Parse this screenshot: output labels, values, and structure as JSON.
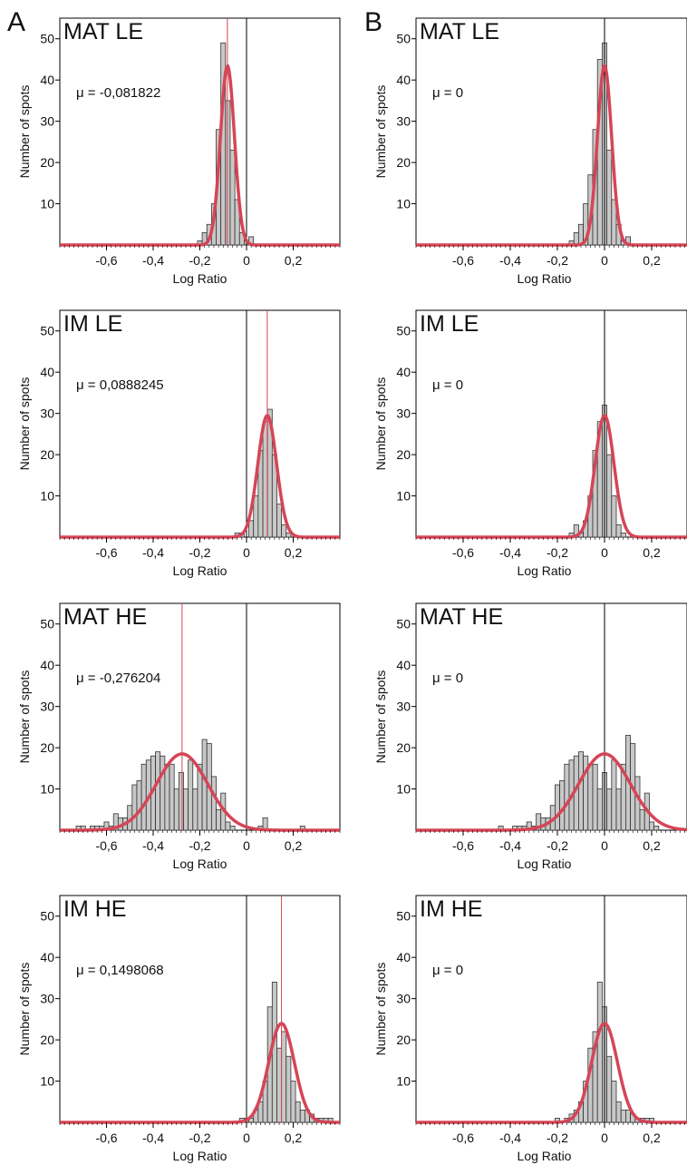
{
  "panel_labels": [
    "A",
    "B"
  ],
  "chart_data": [
    {
      "type": "bar",
      "panel": "A",
      "title": "MAT LE",
      "annotation": "μ = -0,081822",
      "mean": -0.081822,
      "xlabel": "Log Ratio",
      "ylabel": "Number of spots",
      "xlim": [
        -0.8,
        0.4
      ],
      "ylim": [
        0,
        55
      ],
      "xticks": [
        -0.6,
        -0.4,
        -0.2,
        0,
        0.2
      ],
      "xtick_labels": [
        "-0,6",
        "-0,4",
        "-0,2",
        "0",
        "0,2"
      ],
      "yticks": [
        10,
        20,
        30,
        40,
        50
      ],
      "ytick_labels": [
        "10",
        "20",
        "30",
        "40",
        "50"
      ],
      "grid": false,
      "bin_width": 0.02,
      "bins": [
        {
          "x": -0.2,
          "y": 1
        },
        {
          "x": -0.18,
          "y": 3
        },
        {
          "x": -0.16,
          "y": 5
        },
        {
          "x": -0.14,
          "y": 10
        },
        {
          "x": -0.12,
          "y": 28
        },
        {
          "x": -0.1,
          "y": 49
        },
        {
          "x": -0.08,
          "y": 35
        },
        {
          "x": -0.06,
          "y": 23
        },
        {
          "x": -0.04,
          "y": 11
        },
        {
          "x": -0.02,
          "y": 3
        },
        {
          "x": 0,
          "y": 1
        },
        {
          "x": 0.02,
          "y": 2
        }
      ],
      "fit": {
        "type": "normal",
        "mean": -0.081822,
        "sd": 0.03,
        "peak": 43.5
      }
    },
    {
      "type": "bar",
      "panel": "B",
      "title": "MAT LE",
      "annotation": "μ = 0",
      "mean": 0,
      "xlabel": "Log Ratio",
      "ylabel": "Number of spots",
      "xlim": [
        -0.8,
        0.35
      ],
      "ylim": [
        0,
        55
      ],
      "xticks": [
        -0.6,
        -0.4,
        -0.2,
        0,
        0.2
      ],
      "xtick_labels": [
        "-0,6",
        "-0,4",
        "-0,2",
        "0",
        "0,2"
      ],
      "yticks": [
        10,
        20,
        30,
        40,
        50
      ],
      "ytick_labels": [
        "10",
        "20",
        "30",
        "40",
        "50"
      ],
      "grid": false,
      "bin_width": 0.02,
      "bins": [
        {
          "x": -0.14,
          "y": 1
        },
        {
          "x": -0.12,
          "y": 3
        },
        {
          "x": -0.1,
          "y": 5
        },
        {
          "x": -0.08,
          "y": 10
        },
        {
          "x": -0.06,
          "y": 17
        },
        {
          "x": -0.04,
          "y": 28
        },
        {
          "x": -0.02,
          "y": 45
        },
        {
          "x": 0,
          "y": 49
        },
        {
          "x": 0.02,
          "y": 23
        },
        {
          "x": 0.04,
          "y": 11
        },
        {
          "x": 0.06,
          "y": 5
        },
        {
          "x": 0.08,
          "y": 1
        },
        {
          "x": 0.1,
          "y": 2
        }
      ],
      "fit": {
        "type": "normal",
        "mean": 0,
        "sd": 0.03,
        "peak": 43.5
      }
    },
    {
      "type": "bar",
      "panel": "A",
      "title": "IM LE",
      "annotation": "μ = 0,0888245",
      "mean": 0.0888245,
      "xlabel": "Log Ratio",
      "ylabel": "Number of spots",
      "xlim": [
        -0.8,
        0.4
      ],
      "ylim": [
        0,
        55
      ],
      "xticks": [
        -0.6,
        -0.4,
        -0.2,
        0,
        0.2
      ],
      "xtick_labels": [
        "-0,6",
        "-0,4",
        "-0,2",
        "0",
        "0,2"
      ],
      "yticks": [
        10,
        20,
        30,
        40,
        50
      ],
      "ytick_labels": [
        "10",
        "20",
        "30",
        "40",
        "50"
      ],
      "grid": false,
      "bin_width": 0.02,
      "bins": [
        {
          "x": -0.04,
          "y": 1
        },
        {
          "x": -0.02,
          "y": 1
        },
        {
          "x": 0.02,
          "y": 4
        },
        {
          "x": 0.04,
          "y": 10
        },
        {
          "x": 0.06,
          "y": 21
        },
        {
          "x": 0.08,
          "y": 28
        },
        {
          "x": 0.1,
          "y": 31
        },
        {
          "x": 0.12,
          "y": 20
        },
        {
          "x": 0.14,
          "y": 8
        },
        {
          "x": 0.16,
          "y": 3
        },
        {
          "x": 0.18,
          "y": 1
        }
      ],
      "fit": {
        "type": "normal",
        "mean": 0.0888245,
        "sd": 0.04,
        "peak": 29.5
      }
    },
    {
      "type": "bar",
      "panel": "B",
      "title": "IM LE",
      "annotation": "μ = 0",
      "mean": 0,
      "xlabel": "Log Ratio",
      "ylabel": "Number of spots",
      "xlim": [
        -0.8,
        0.35
      ],
      "ylim": [
        0,
        55
      ],
      "xticks": [
        -0.6,
        -0.4,
        -0.2,
        0,
        0.2
      ],
      "xtick_labels": [
        "-0,6",
        "-0,4",
        "-0,2",
        "0",
        "0,2"
      ],
      "yticks": [
        10,
        20,
        30,
        40,
        50
      ],
      "ytick_labels": [
        "10",
        "20",
        "30",
        "40",
        "50"
      ],
      "grid": false,
      "bin_width": 0.02,
      "bins": [
        {
          "x": -0.14,
          "y": 1
        },
        {
          "x": -0.12,
          "y": 3
        },
        {
          "x": -0.1,
          "y": 1
        },
        {
          "x": -0.08,
          "y": 4
        },
        {
          "x": -0.06,
          "y": 10
        },
        {
          "x": -0.04,
          "y": 21
        },
        {
          "x": -0.02,
          "y": 28
        },
        {
          "x": 0,
          "y": 32
        },
        {
          "x": 0.02,
          "y": 20
        },
        {
          "x": 0.04,
          "y": 10
        },
        {
          "x": 0.06,
          "y": 3
        },
        {
          "x": 0.08,
          "y": 1
        }
      ],
      "fit": {
        "type": "normal",
        "mean": 0,
        "sd": 0.04,
        "peak": 29.5
      }
    },
    {
      "type": "bar",
      "panel": "A",
      "title": "MAT HE",
      "annotation": "μ = -0,276204",
      "mean": -0.276204,
      "xlabel": "Log Ratio",
      "ylabel": "Number of spots",
      "xlim": [
        -0.8,
        0.4
      ],
      "ylim": [
        0,
        55
      ],
      "xticks": [
        -0.6,
        -0.4,
        -0.2,
        0,
        0.2
      ],
      "xtick_labels": [
        "-0,6",
        "-0,4",
        "-0,2",
        "0",
        "0,2"
      ],
      "yticks": [
        10,
        20,
        30,
        40,
        50
      ],
      "ytick_labels": [
        "10",
        "20",
        "30",
        "40",
        "50"
      ],
      "grid": false,
      "bin_width": 0.02,
      "bins": [
        {
          "x": -0.72,
          "y": 1
        },
        {
          "x": -0.7,
          "y": 1
        },
        {
          "x": -0.66,
          "y": 1
        },
        {
          "x": -0.64,
          "y": 1
        },
        {
          "x": -0.62,
          "y": 1
        },
        {
          "x": -0.6,
          "y": 2
        },
        {
          "x": -0.58,
          "y": 1
        },
        {
          "x": -0.56,
          "y": 4
        },
        {
          "x": -0.54,
          "y": 3
        },
        {
          "x": -0.52,
          "y": 3
        },
        {
          "x": -0.5,
          "y": 6
        },
        {
          "x": -0.48,
          "y": 11
        },
        {
          "x": -0.46,
          "y": 12
        },
        {
          "x": -0.44,
          "y": 16
        },
        {
          "x": -0.42,
          "y": 17
        },
        {
          "x": -0.4,
          "y": 18
        },
        {
          "x": -0.38,
          "y": 19
        },
        {
          "x": -0.36,
          "y": 18
        },
        {
          "x": -0.34,
          "y": 16
        },
        {
          "x": -0.32,
          "y": 16
        },
        {
          "x": -0.3,
          "y": 10
        },
        {
          "x": -0.28,
          "y": 14
        },
        {
          "x": -0.26,
          "y": 10
        },
        {
          "x": -0.24,
          "y": 17
        },
        {
          "x": -0.22,
          "y": 10
        },
        {
          "x": -0.2,
          "y": 16
        },
        {
          "x": -0.18,
          "y": 22
        },
        {
          "x": -0.16,
          "y": 21
        },
        {
          "x": -0.14,
          "y": 13
        },
        {
          "x": -0.12,
          "y": 5
        },
        {
          "x": -0.1,
          "y": 9
        },
        {
          "x": -0.08,
          "y": 2
        },
        {
          "x": -0.06,
          "y": 1
        },
        {
          "x": 0.06,
          "y": 1
        },
        {
          "x": 0.08,
          "y": 3
        },
        {
          "x": 0.24,
          "y": 1
        }
      ],
      "fit": {
        "type": "normal",
        "mean": -0.276204,
        "sd": 0.11,
        "peak": 18.5
      }
    },
    {
      "type": "bar",
      "panel": "B",
      "title": "MAT HE",
      "annotation": "μ = 0",
      "mean": 0,
      "xlabel": "Log Ratio",
      "ylabel": "Number of spots",
      "xlim": [
        -0.8,
        0.35
      ],
      "ylim": [
        0,
        55
      ],
      "xticks": [
        -0.6,
        -0.4,
        -0.2,
        0,
        0.2
      ],
      "xtick_labels": [
        "-0,6",
        "-0,4",
        "-0,2",
        "0",
        "0,2"
      ],
      "yticks": [
        10,
        20,
        30,
        40,
        50
      ],
      "ytick_labels": [
        "10",
        "20",
        "30",
        "40",
        "50"
      ],
      "grid": false,
      "bin_width": 0.02,
      "bins": [
        {
          "x": -0.44,
          "y": 1
        },
        {
          "x": -0.38,
          "y": 1
        },
        {
          "x": -0.36,
          "y": 1
        },
        {
          "x": -0.34,
          "y": 1
        },
        {
          "x": -0.32,
          "y": 2
        },
        {
          "x": -0.3,
          "y": 1
        },
        {
          "x": -0.28,
          "y": 4
        },
        {
          "x": -0.26,
          "y": 3
        },
        {
          "x": -0.24,
          "y": 3
        },
        {
          "x": -0.22,
          "y": 6
        },
        {
          "x": -0.2,
          "y": 11
        },
        {
          "x": -0.18,
          "y": 12
        },
        {
          "x": -0.16,
          "y": 16
        },
        {
          "x": -0.14,
          "y": 17
        },
        {
          "x": -0.12,
          "y": 18
        },
        {
          "x": -0.1,
          "y": 19
        },
        {
          "x": -0.08,
          "y": 18
        },
        {
          "x": -0.06,
          "y": 16
        },
        {
          "x": -0.04,
          "y": 16
        },
        {
          "x": -0.02,
          "y": 10
        },
        {
          "x": 0,
          "y": 14
        },
        {
          "x": 0.02,
          "y": 10
        },
        {
          "x": 0.04,
          "y": 17
        },
        {
          "x": 0.06,
          "y": 10
        },
        {
          "x": 0.08,
          "y": 16
        },
        {
          "x": 0.1,
          "y": 23
        },
        {
          "x": 0.12,
          "y": 21
        },
        {
          "x": 0.14,
          "y": 13
        },
        {
          "x": 0.16,
          "y": 5
        },
        {
          "x": 0.18,
          "y": 9
        },
        {
          "x": 0.2,
          "y": 2
        },
        {
          "x": 0.22,
          "y": 1
        }
      ],
      "fit": {
        "type": "normal",
        "mean": 0,
        "sd": 0.11,
        "peak": 18.5
      }
    },
    {
      "type": "bar",
      "panel": "A",
      "title": "IM HE",
      "annotation": "μ = 0,1498068",
      "mean": 0.1498068,
      "xlabel": "Log Ratio",
      "ylabel": "Number of spots",
      "xlim": [
        -0.8,
        0.4
      ],
      "ylim": [
        0,
        55
      ],
      "xticks": [
        -0.6,
        -0.4,
        -0.2,
        0,
        0.2
      ],
      "xtick_labels": [
        "-0,6",
        "-0,4",
        "-0,2",
        "0",
        "0,2"
      ],
      "yticks": [
        10,
        20,
        30,
        40,
        50
      ],
      "ytick_labels": [
        "10",
        "20",
        "30",
        "40",
        "50"
      ],
      "grid": false,
      "bin_width": 0.02,
      "bins": [
        {
          "x": -0.02,
          "y": 1
        },
        {
          "x": 0,
          "y": 1
        },
        {
          "x": 0.02,
          "y": 1
        },
        {
          "x": 0.04,
          "y": 3
        },
        {
          "x": 0.06,
          "y": 5
        },
        {
          "x": 0.08,
          "y": 10
        },
        {
          "x": 0.1,
          "y": 28
        },
        {
          "x": 0.12,
          "y": 34
        },
        {
          "x": 0.14,
          "y": 18
        },
        {
          "x": 0.16,
          "y": 22
        },
        {
          "x": 0.18,
          "y": 16
        },
        {
          "x": 0.2,
          "y": 10
        },
        {
          "x": 0.22,
          "y": 5
        },
        {
          "x": 0.24,
          "y": 3
        },
        {
          "x": 0.26,
          "y": 3
        },
        {
          "x": 0.28,
          "y": 2
        },
        {
          "x": 0.3,
          "y": 1
        },
        {
          "x": 0.32,
          "y": 1
        },
        {
          "x": 0.34,
          "y": 1
        },
        {
          "x": 0.36,
          "y": 1
        }
      ],
      "fit": {
        "type": "normal",
        "mean": 0.1498068,
        "sd": 0.055,
        "peak": 24
      }
    },
    {
      "type": "bar",
      "panel": "B",
      "title": "IM HE",
      "annotation": "μ = 0",
      "mean": 0,
      "xlabel": "Log Ratio",
      "ylabel": "Number of spots",
      "xlim": [
        -0.8,
        0.35
      ],
      "ylim": [
        0,
        55
      ],
      "xticks": [
        -0.6,
        -0.4,
        -0.2,
        0,
        0.2
      ],
      "xtick_labels": [
        "-0,6",
        "-0,4",
        "-0,2",
        "0",
        "0,2"
      ],
      "yticks": [
        10,
        20,
        30,
        40,
        50
      ],
      "ytick_labels": [
        "10",
        "20",
        "30",
        "40",
        "50"
      ],
      "grid": false,
      "bin_width": 0.02,
      "bins": [
        {
          "x": -0.2,
          "y": 1
        },
        {
          "x": -0.16,
          "y": 1
        },
        {
          "x": -0.14,
          "y": 2
        },
        {
          "x": -0.12,
          "y": 3
        },
        {
          "x": -0.1,
          "y": 5
        },
        {
          "x": -0.08,
          "y": 10
        },
        {
          "x": -0.06,
          "y": 18
        },
        {
          "x": -0.04,
          "y": 22
        },
        {
          "x": -0.02,
          "y": 34
        },
        {
          "x": 0,
          "y": 28
        },
        {
          "x": 0.02,
          "y": 16
        },
        {
          "x": 0.04,
          "y": 10
        },
        {
          "x": 0.06,
          "y": 5
        },
        {
          "x": 0.08,
          "y": 3
        },
        {
          "x": 0.1,
          "y": 3
        },
        {
          "x": 0.12,
          "y": 2
        },
        {
          "x": 0.14,
          "y": 1
        },
        {
          "x": 0.16,
          "y": 1
        },
        {
          "x": 0.18,
          "y": 1
        },
        {
          "x": 0.2,
          "y": 1
        }
      ],
      "fit": {
        "type": "normal",
        "mean": 0,
        "sd": 0.055,
        "peak": 24
      }
    }
  ],
  "colors": {
    "bar_fill": "#c8c8c8",
    "bar_stroke": "#333333",
    "fit": "#d64556",
    "mean_line": "#d64556",
    "zero_line": "#000000",
    "axis": "#000000"
  }
}
